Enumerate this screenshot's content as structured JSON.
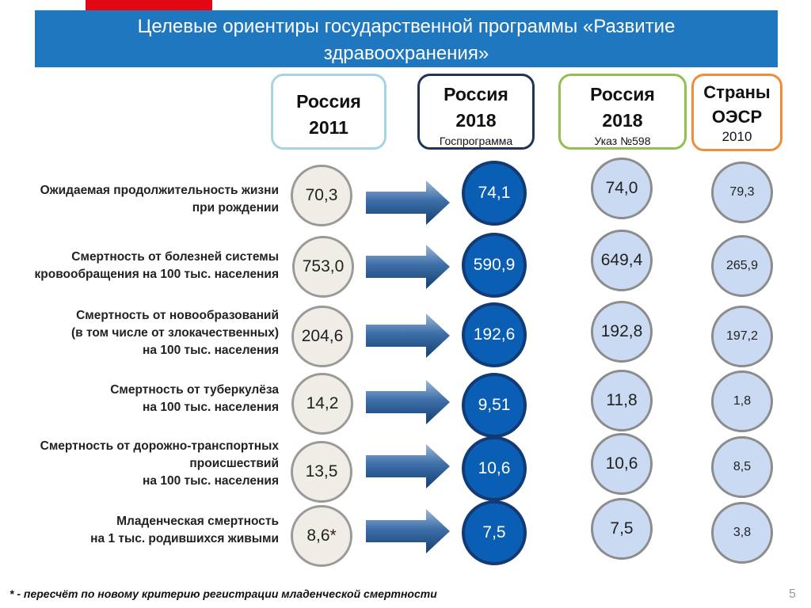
{
  "slide": {
    "title_line1": "Целевые ориентиры государственной программы «Развитие",
    "title_line2": "здравоохранения»",
    "page_number": "5",
    "footnote": "* - пересчёт по новому критерию регистрации младенческой смертности"
  },
  "columns": [
    {
      "title_line1": "Россия",
      "title_line2": "2011",
      "subtitle": ""
    },
    {
      "title_line1": "Россия",
      "title_line2": "2018",
      "subtitle": "Госпрограмма"
    },
    {
      "title_line1": "Россия",
      "title_line2": "2018",
      "subtitle": "Указ №598"
    },
    {
      "title_line1": "Страны",
      "title_line2": "ОЭСР",
      "subtitle": "2010"
    }
  ],
  "rows": [
    {
      "label": [
        "Ожидаемая продолжительность жизни",
        "при рождении"
      ],
      "values": [
        "70,3",
        "74,1",
        "74,0",
        "79,3"
      ]
    },
    {
      "label": [
        "Смертность от болезней системы",
        "кровообращения на 100 тыс. населения"
      ],
      "values": [
        "753,0",
        "590,9",
        "649,4",
        "265,9"
      ]
    },
    {
      "label": [
        "Смертность от новообразований",
        "(в том числе от злокачественных)",
        "на 100 тыс. населения"
      ],
      "values": [
        "204,6",
        "192,6",
        "192,8",
        "197,2"
      ]
    },
    {
      "label": [
        "Смертность от туберкулёза",
        "на 100 тыс. населения"
      ],
      "values": [
        "14,2",
        "9,51",
        "11,8",
        "1,8"
      ]
    },
    {
      "label": [
        "Смертность от дорожно-транспортных",
        "происшествий",
        "на 100 тыс. населения"
      ],
      "values": [
        "13,5",
        "10,6",
        "10,6",
        "8,5"
      ]
    },
    {
      "label": [
        "Младенческая смертность",
        "на 1 тыс. родившихся живыми"
      ],
      "values": [
        "8,6*",
        "7,5",
        "7,5",
        "3,8"
      ]
    }
  ],
  "colors": {
    "banner": "#1f77c0",
    "accent_red": "#e30613",
    "circle_dark": "#0a5fb4",
    "circle_light": "#c9daf2",
    "circle_grey": "#efede6",
    "arrow": "#1a4e86"
  }
}
